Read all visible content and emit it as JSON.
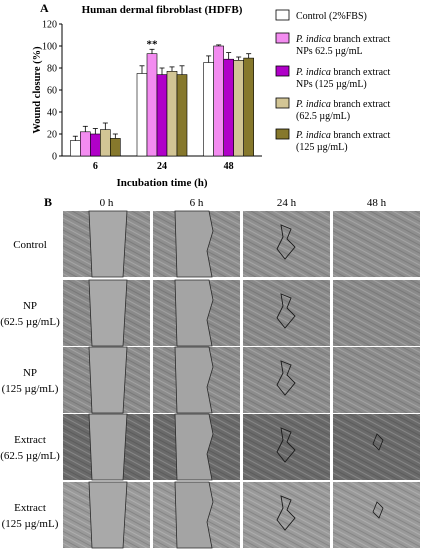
{
  "panel_a_label": "A",
  "panel_b_label": "B",
  "chart_data": {
    "type": "bar",
    "title": "Human dermal fibroblast  (HDFB)",
    "xlabel": "Incubation time (h)",
    "ylabel": "Wound closure (%)",
    "ylim": [
      0,
      120
    ],
    "yticks": [
      0,
      20,
      40,
      60,
      80,
      100,
      120
    ],
    "categories": [
      "6",
      "24",
      "48"
    ],
    "legend_position": "right",
    "grid": false,
    "annotations": [
      {
        "category": "24",
        "series": 1,
        "text": "**"
      }
    ],
    "series": [
      {
        "name_lines": [
          "Control (2%FBS)"
        ],
        "color": "#ffffff",
        "values": [
          14,
          75,
          85
        ],
        "errors": [
          4,
          7,
          6
        ]
      },
      {
        "name_lines": [
          "P. indica branch extract",
          "NPs 62.5 µg/mL"
        ],
        "color": "#f38cf0",
        "values": [
          22,
          93,
          100
        ],
        "errors": [
          5,
          4,
          1
        ]
      },
      {
        "name_lines": [
          "P. indica branch extract",
          "NPs (125 µg/mL)"
        ],
        "color": "#b000c8",
        "values": [
          20,
          74,
          88
        ],
        "errors": [
          5,
          6,
          6
        ]
      },
      {
        "name_lines": [
          "P. indica branch extract",
          "(62.5 µg/mL)"
        ],
        "color": "#d2c595",
        "values": [
          24,
          77,
          87
        ],
        "errors": [
          6,
          4,
          3
        ]
      },
      {
        "name_lines": [
          "P. indica branch extract",
          "(125 µg/mL)"
        ],
        "color": "#86782c",
        "values": [
          16,
          74,
          89
        ],
        "errors": [
          4,
          8,
          4
        ]
      }
    ]
  },
  "micrographs": {
    "columns": [
      "0 h",
      "6 h",
      "24 h",
      "48 h"
    ],
    "rows": [
      {
        "label_lines": [
          "Control"
        ],
        "tone": "#8f8f8f"
      },
      {
        "label_lines": [
          "NP",
          "(62.5 µg/mL)"
        ],
        "tone": "#8a8a8a"
      },
      {
        "label_lines": [
          "NP",
          "(125 µg/mL)"
        ],
        "tone": "#8c8c8c"
      },
      {
        "label_lines": [
          "Extract",
          "(62.5 µg/mL)"
        ],
        "tone": "#6a6a6a"
      },
      {
        "label_lines": [
          "Extract",
          "(125 µg/mL)"
        ],
        "tone": "#9a9a9a"
      }
    ]
  }
}
